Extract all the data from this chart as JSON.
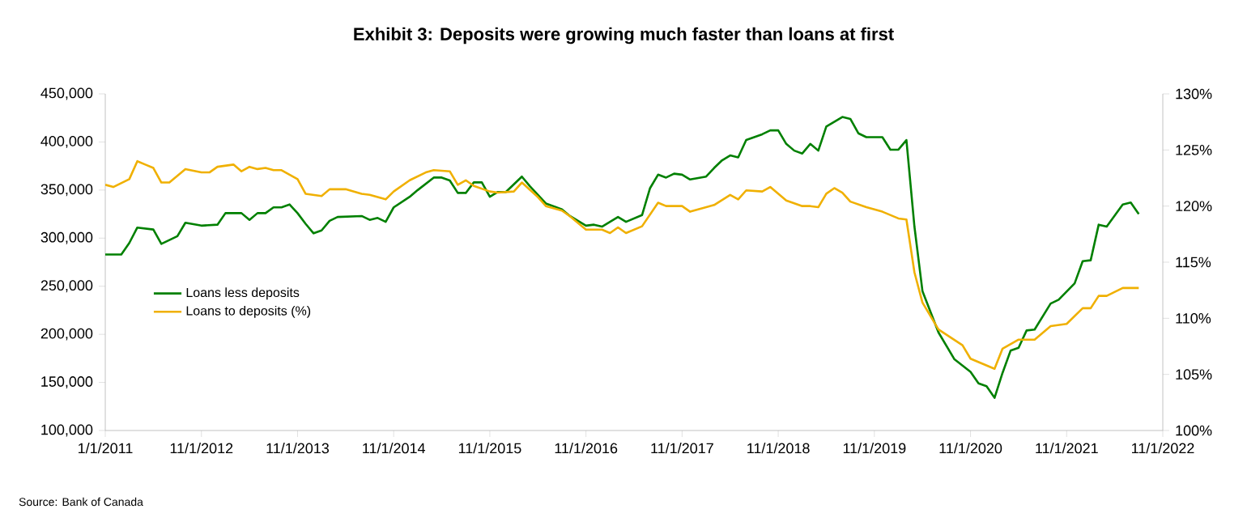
{
  "chart_data": {
    "type": "line",
    "title": "Exhibit 3: Deposits were growing much faster than loans at first",
    "annotations": [
      "Source: Bank of Canada"
    ],
    "legend": "left",
    "grid": false,
    "line_style": "solid",
    "marker": "none",
    "xlim": [
      "2011-11",
      "2022-11"
    ],
    "xticks": [
      {
        "value": "2011-11",
        "label": "1/1/2011"
      },
      {
        "value": "2012-11",
        "label": "11/1/2012"
      },
      {
        "value": "2013-11",
        "label": "11/1/2013"
      },
      {
        "value": "2014-11",
        "label": "11/1/2014"
      },
      {
        "value": "2015-11",
        "label": "11/1/2015"
      },
      {
        "value": "2016-11",
        "label": "11/1/2016"
      },
      {
        "value": "2017-11",
        "label": "11/1/2017"
      },
      {
        "value": "2018-11",
        "label": "11/1/2018"
      },
      {
        "value": "2019-11",
        "label": "11/1/2019"
      },
      {
        "value": "2020-11",
        "label": "11/1/2020"
      },
      {
        "value": "2021-11",
        "label": "11/1/2021"
      },
      {
        "value": "2022-11",
        "label": "11/1/2022"
      }
    ],
    "ylim": [
      100000,
      450000
    ],
    "yticks": [
      {
        "value": 100000,
        "label": "100,000"
      },
      {
        "value": 150000,
        "label": "150,000"
      },
      {
        "value": 200000,
        "label": "200,000"
      },
      {
        "value": 250000,
        "label": "250,000"
      },
      {
        "value": 300000,
        "label": "300,000"
      },
      {
        "value": 350000,
        "label": "350,000"
      },
      {
        "value": 400000,
        "label": "400,000"
      },
      {
        "value": 450000,
        "label": "450,000"
      }
    ],
    "y2lim": [
      100,
      130
    ],
    "y2ticks": [
      {
        "value": 100,
        "label": "100%"
      },
      {
        "value": 105,
        "label": "105%"
      },
      {
        "value": 110,
        "label": "110%"
      },
      {
        "value": 115,
        "label": "115%"
      },
      {
        "value": 120,
        "label": "120%"
      },
      {
        "value": 125,
        "label": "125%"
      },
      {
        "value": 130,
        "label": "130%"
      }
    ],
    "series": [
      {
        "name": "Loans less deposits",
        "color": "#008000",
        "axis": "y",
        "x": [
          "2011-11",
          "2012-01",
          "2012-02",
          "2012-03",
          "2012-05",
          "2012-06",
          "2012-08",
          "2012-09",
          "2012-11",
          "2013-01",
          "2013-02",
          "2013-04",
          "2013-05",
          "2013-06",
          "2013-07",
          "2013-08",
          "2013-09",
          "2013-10",
          "2013-11",
          "2013-12",
          "2014-01",
          "2014-02",
          "2014-03",
          "2014-04",
          "2014-07",
          "2014-08",
          "2014-09",
          "2014-10",
          "2014-11",
          "2015-01",
          "2015-02",
          "2015-04",
          "2015-05",
          "2015-06",
          "2015-07",
          "2015-08",
          "2015-09",
          "2015-10",
          "2015-11",
          "2015-12",
          "2016-01",
          "2016-03",
          "2016-04",
          "2016-06",
          "2016-08",
          "2016-09",
          "2016-11",
          "2016-12",
          "2017-01",
          "2017-03",
          "2017-04",
          "2017-06",
          "2017-07",
          "2017-08",
          "2017-09",
          "2017-10",
          "2017-11",
          "2017-12",
          "2018-02",
          "2018-03",
          "2018-04",
          "2018-05",
          "2018-06",
          "2018-07",
          "2018-09",
          "2018-10",
          "2018-11",
          "2018-12",
          "2019-01",
          "2019-02",
          "2019-03",
          "2019-04",
          "2019-05",
          "2019-07",
          "2019-08",
          "2019-09",
          "2019-10",
          "2019-12",
          "2020-01",
          "2020-02",
          "2020-03",
          "2020-04",
          "2020-05",
          "2020-07",
          "2020-09",
          "2020-11",
          "2020-12",
          "2021-01",
          "2021-02",
          "2021-03",
          "2021-04",
          "2021-05",
          "2021-06",
          "2021-07",
          "2021-09",
          "2021-10",
          "2021-12",
          "2022-01",
          "2022-02",
          "2022-03",
          "2022-04",
          "2022-06",
          "2022-07",
          "2022-08"
        ],
        "values": [
          283000,
          283000,
          295000,
          311000,
          309000,
          294000,
          302000,
          316000,
          313000,
          314000,
          326000,
          326000,
          319000,
          326000,
          326000,
          332000,
          332000,
          335000,
          326000,
          315000,
          305000,
          308000,
          318000,
          322000,
          323000,
          319000,
          321000,
          317000,
          332000,
          343000,
          350000,
          363000,
          363000,
          360000,
          347000,
          347000,
          358000,
          358000,
          343000,
          348000,
          348000,
          364000,
          354000,
          336000,
          330000,
          323000,
          313000,
          314000,
          312000,
          322000,
          317000,
          324000,
          352000,
          366000,
          363000,
          367000,
          366000,
          361000,
          364000,
          373000,
          381000,
          386000,
          384000,
          402000,
          408000,
          412000,
          412000,
          398000,
          391000,
          388000,
          398000,
          391000,
          416000,
          426000,
          424000,
          409000,
          405000,
          405000,
          392000,
          392000,
          402000,
          312000,
          245000,
          202000,
          174000,
          161000,
          149000,
          146000,
          134000,
          160000,
          183000,
          186000,
          204000,
          205000,
          232000,
          236000,
          253000,
          276000,
          277000,
          314000,
          312000,
          335000,
          337000,
          325000
        ]
      },
      {
        "name": "Loans to deposits (%)",
        "color": "#f0b000",
        "axis": "y2",
        "x": [
          "2011-11",
          "2011-12",
          "2012-02",
          "2012-03",
          "2012-04",
          "2012-05",
          "2012-06",
          "2012-07",
          "2012-09",
          "2012-11",
          "2012-12",
          "2013-01",
          "2013-03",
          "2013-04",
          "2013-05",
          "2013-06",
          "2013-07",
          "2013-08",
          "2013-09",
          "2013-11",
          "2013-12",
          "2014-02",
          "2014-03",
          "2014-05",
          "2014-07",
          "2014-08",
          "2014-10",
          "2014-11",
          "2015-01",
          "2015-03",
          "2015-04",
          "2015-06",
          "2015-07",
          "2015-08",
          "2015-09",
          "2015-11",
          "2015-12",
          "2016-02",
          "2016-03",
          "2016-05",
          "2016-06",
          "2016-08",
          "2016-09",
          "2016-11",
          "2017-01",
          "2017-02",
          "2017-03",
          "2017-04",
          "2017-06",
          "2017-08",
          "2017-09",
          "2017-11",
          "2017-12",
          "2018-01",
          "2018-03",
          "2018-05",
          "2018-06",
          "2018-07",
          "2018-09",
          "2018-10",
          "2018-12",
          "2019-02",
          "2019-03",
          "2019-04",
          "2019-05",
          "2019-06",
          "2019-07",
          "2019-08",
          "2019-10",
          "2019-12",
          "2020-02",
          "2020-03",
          "2020-04",
          "2020-05",
          "2020-07",
          "2020-10",
          "2020-11",
          "2021-02",
          "2021-03",
          "2021-05",
          "2021-07",
          "2021-09",
          "2021-11",
          "2022-01",
          "2022-02",
          "2022-03",
          "2022-04",
          "2022-06",
          "2022-08"
        ],
        "values": [
          121.9,
          121.7,
          122.4,
          124.0,
          123.7,
          123.4,
          122.1,
          122.1,
          123.3,
          123.0,
          123.0,
          123.5,
          123.7,
          123.1,
          123.5,
          123.3,
          123.4,
          123.2,
          123.2,
          122.4,
          121.1,
          120.9,
          121.5,
          121.5,
          121.1,
          121.0,
          120.6,
          121.3,
          122.3,
          123.0,
          123.2,
          123.1,
          121.9,
          122.3,
          121.8,
          121.3,
          121.2,
          121.3,
          122.1,
          120.8,
          120.0,
          119.6,
          119.1,
          117.9,
          117.9,
          117.6,
          118.1,
          117.6,
          118.2,
          120.3,
          120.0,
          120.0,
          119.5,
          119.7,
          120.1,
          121.0,
          120.6,
          121.4,
          121.3,
          121.7,
          120.5,
          120.0,
          120.0,
          119.9,
          121.1,
          121.6,
          121.2,
          120.4,
          119.9,
          119.5,
          118.9,
          118.8,
          114.1,
          111.4,
          109.0,
          107.6,
          106.4,
          105.5,
          107.3,
          108.1,
          108.1,
          109.3,
          109.5,
          110.9,
          110.9,
          112.0,
          112.0,
          112.7,
          112.7
        ]
      }
    ]
  }
}
